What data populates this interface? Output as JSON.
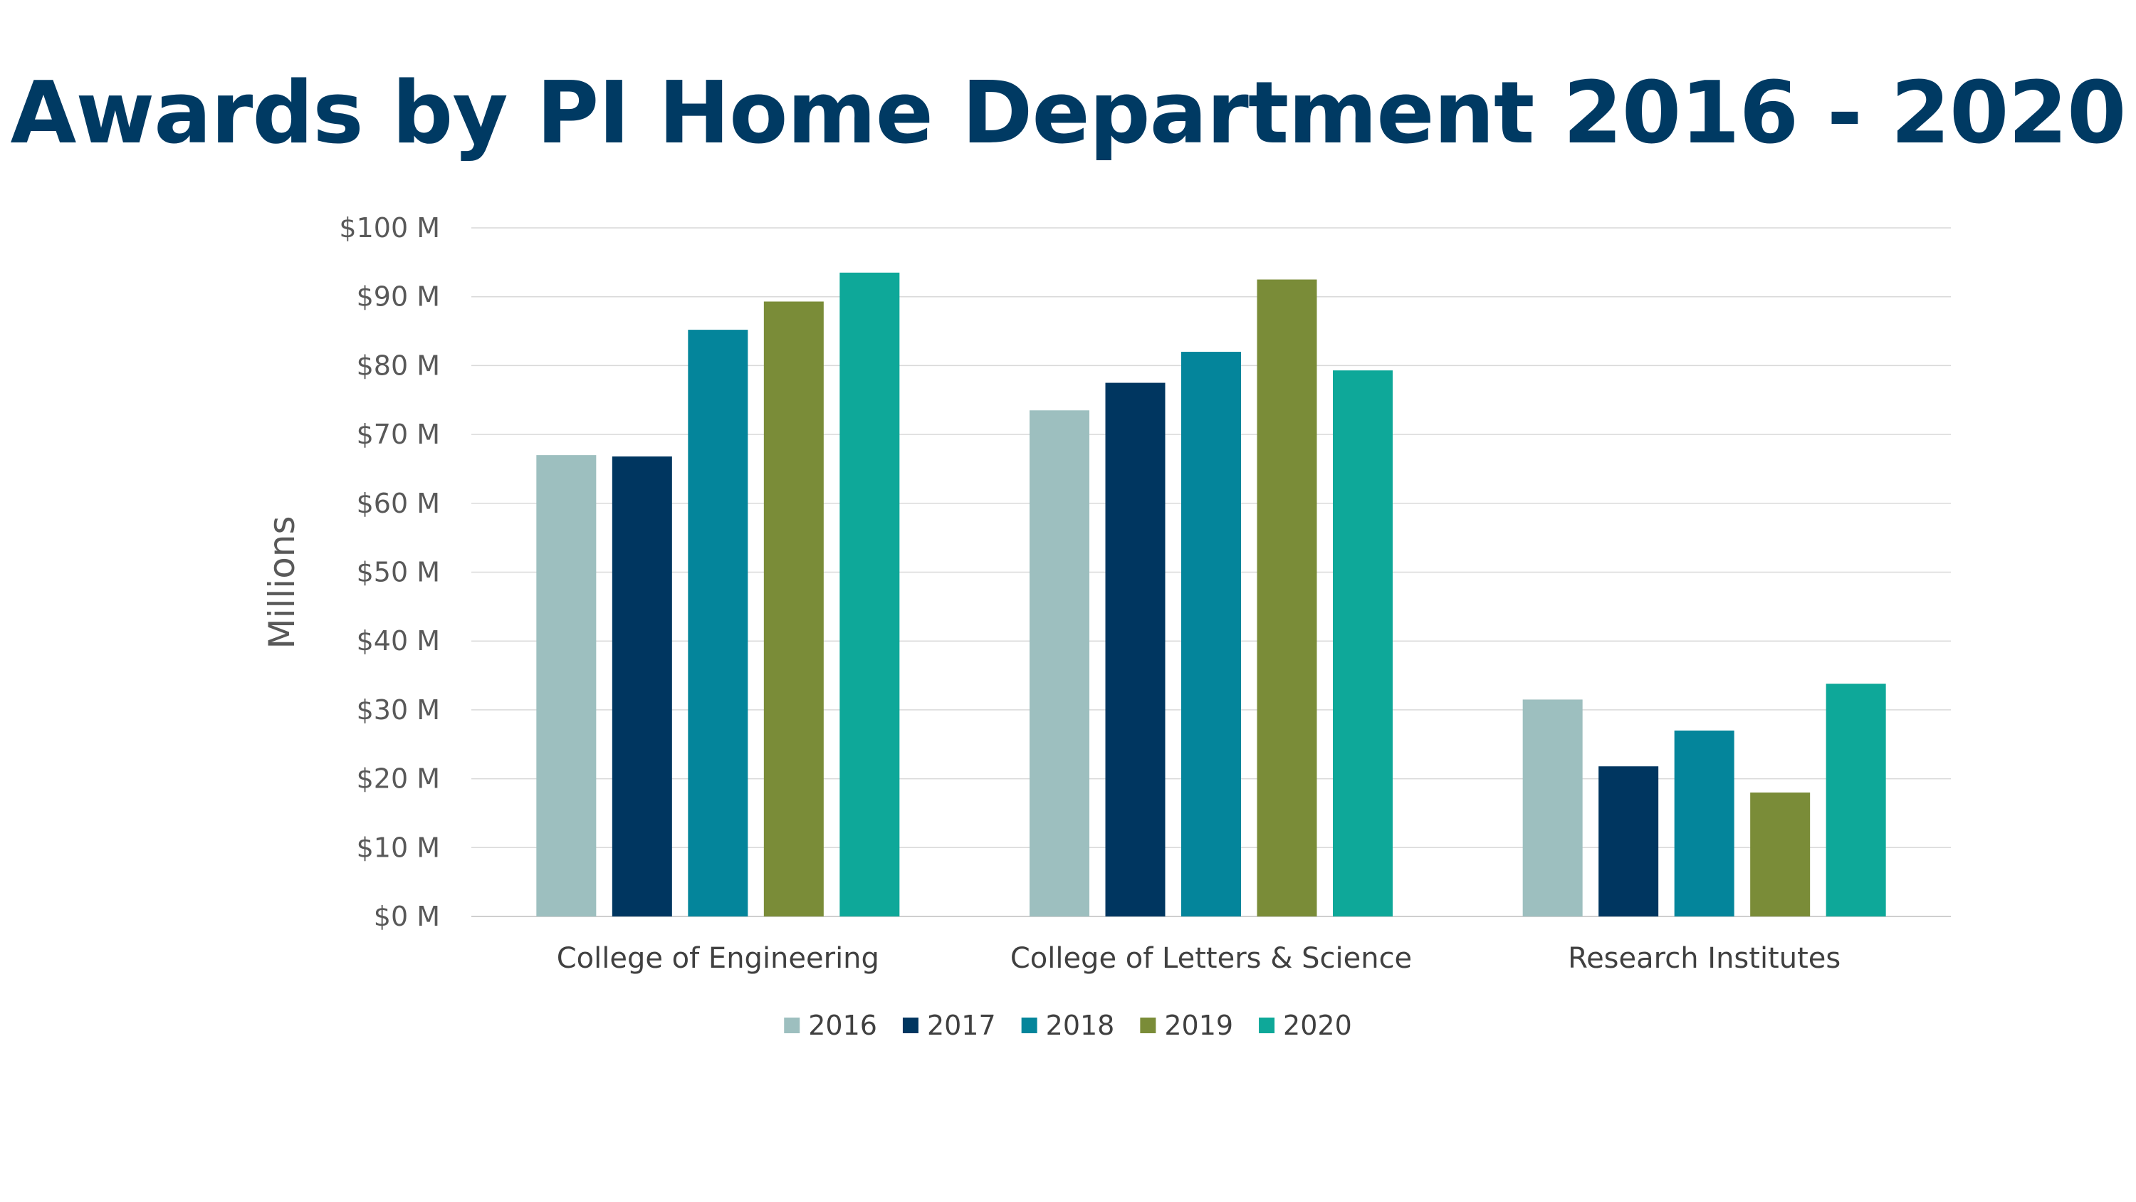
{
  "chart_data": {
    "type": "bar",
    "title": "Awards by PI Home Department 2016 - 2020",
    "ylabel": "Millions",
    "xlabel": "",
    "categories": [
      "College of Engineering",
      "College of Letters & Science",
      "Research Institutes"
    ],
    "series": [
      {
        "name": "2016",
        "color": "#9dbfbf",
        "values": [
          67,
          73.5,
          31.5
        ]
      },
      {
        "name": "2017",
        "color": "#003660",
        "values": [
          66.8,
          77.5,
          21.8
        ]
      },
      {
        "name": "2018",
        "color": "#04859b",
        "values": [
          85.2,
          82,
          27
        ]
      },
      {
        "name": "2019",
        "color": "#7a8c38",
        "values": [
          89.3,
          92.5,
          18
        ]
      },
      {
        "name": "2020",
        "color": "#0ea899",
        "values": [
          93.5,
          79.3,
          33.8
        ]
      }
    ],
    "ylim": [
      0,
      100
    ],
    "yticks": [
      0,
      10,
      20,
      30,
      40,
      50,
      60,
      70,
      80,
      90,
      100
    ],
    "ytick_labels": [
      "$0 M",
      "$10 M",
      "$20 M",
      "$30 M",
      "$40 M",
      "$50 M",
      "$60 M",
      "$70 M",
      "$80 M",
      "$90 M",
      "$100 M"
    ],
    "grid": true,
    "legend_position": "bottom"
  }
}
